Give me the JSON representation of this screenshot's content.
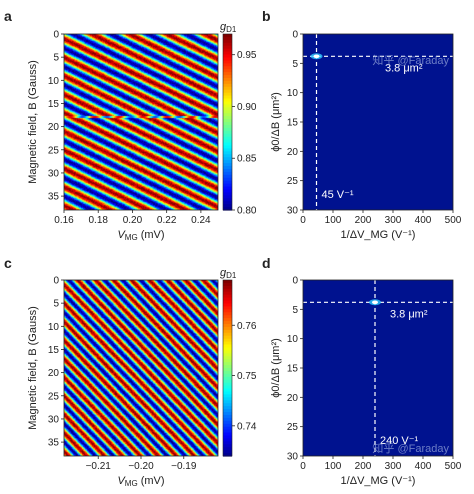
{
  "panels": [
    {
      "letter": "a"
    },
    {
      "letter": "b"
    },
    {
      "letter": "c"
    },
    {
      "letter": "d"
    }
  ],
  "chart_data": [
    {
      "panel": "a",
      "type": "heatmap",
      "xlabel": {
        "main": "V",
        "sub": "MG",
        "rest": " (mV)"
      },
      "ylabel": "Magnetic field, B (Gauss)",
      "x_ticks": [
        "0.16",
        "0.18",
        "0.20",
        "0.22",
        "0.24"
      ],
      "x_tick_values": [
        0.16,
        0.18,
        0.2,
        0.22,
        0.24
      ],
      "xlim": [
        0.16,
        0.25
      ],
      "y_ticks": [
        "0",
        "5",
        "10",
        "15",
        "20",
        "25",
        "30",
        "35"
      ],
      "y_tick_values": [
        0,
        5,
        10,
        15,
        20,
        25,
        30,
        35
      ],
      "ylim": [
        0,
        38
      ],
      "colorbar": {
        "label": {
          "main": "g",
          "sub": "D1"
        },
        "ticks": [
          "0.95",
          "0.90",
          "0.85",
          "0.80"
        ],
        "tick_values": [
          0.95,
          0.9,
          0.85,
          0.8
        ],
        "range": [
          0.8,
          0.97
        ]
      },
      "stripe_period_B": 4.0,
      "stripe_period_V": 0.022,
      "glitch_B": 17.8,
      "colormap": "jet"
    },
    {
      "panel": "b",
      "type": "heatmap",
      "xlabel": "1/ΔV_MG (V⁻¹)",
      "ylabel": "ϕ0/ΔB (μm²)",
      "x_ticks": [
        "0",
        "100",
        "200",
        "300",
        "400",
        "500"
      ],
      "x_tick_values": [
        0,
        100,
        200,
        300,
        400,
        500
      ],
      "xlim": [
        0,
        500
      ],
      "y_ticks": [
        "0",
        "5",
        "10",
        "15",
        "20",
        "25",
        "30"
      ],
      "y_tick_values": [
        0,
        5,
        10,
        15,
        20,
        25,
        30
      ],
      "ylim": [
        0,
        30
      ],
      "peak": {
        "x": 45,
        "y": 3.8
      },
      "annotations": [
        "3.8 μm²",
        "45 V⁻¹"
      ],
      "watermark": "知乎 @Faraday"
    },
    {
      "panel": "c",
      "type": "heatmap",
      "xlabel": {
        "main": "V",
        "sub": "MG",
        "rest": " (mV)"
      },
      "ylabel": "Magnetic field, B (Gauss)",
      "x_ticks": [
        "−0.21",
        "−0.20",
        "−0.19"
      ],
      "x_tick_values": [
        -0.21,
        -0.2,
        -0.19
      ],
      "xlim": [
        -0.218,
        -0.182
      ],
      "y_ticks": [
        "0",
        "5",
        "10",
        "15",
        "20",
        "25",
        "30",
        "35"
      ],
      "y_tick_values": [
        0,
        5,
        10,
        15,
        20,
        25,
        30,
        35
      ],
      "ylim": [
        0,
        38
      ],
      "colorbar": {
        "label": {
          "main": "g",
          "sub": "D1"
        },
        "ticks": [
          "0.76",
          "0.75",
          "0.74"
        ],
        "tick_values": [
          0.76,
          0.75,
          0.74
        ],
        "range": [
          0.734,
          0.769
        ]
      },
      "stripe_period_B": 4.0,
      "stripe_period_V": 0.0042,
      "colormap": "jet"
    },
    {
      "panel": "d",
      "type": "heatmap",
      "xlabel": "1/ΔV_MG (V⁻¹)",
      "ylabel": "ϕ0/ΔB (μm²)",
      "x_ticks": [
        "0",
        "100",
        "200",
        "300",
        "400",
        "500"
      ],
      "x_tick_values": [
        0,
        100,
        200,
        300,
        400,
        500
      ],
      "xlim": [
        0,
        500
      ],
      "y_ticks": [
        "0",
        "5",
        "10",
        "15",
        "20",
        "25",
        "30"
      ],
      "y_tick_values": [
        0,
        5,
        10,
        15,
        20,
        25,
        30
      ],
      "ylim": [
        0,
        30
      ],
      "peak": {
        "x": 240,
        "y": 3.8
      },
      "annotations": [
        "3.8 μm²",
        "240 V⁻¹"
      ],
      "watermark": "知乎 @Faraday"
    }
  ]
}
